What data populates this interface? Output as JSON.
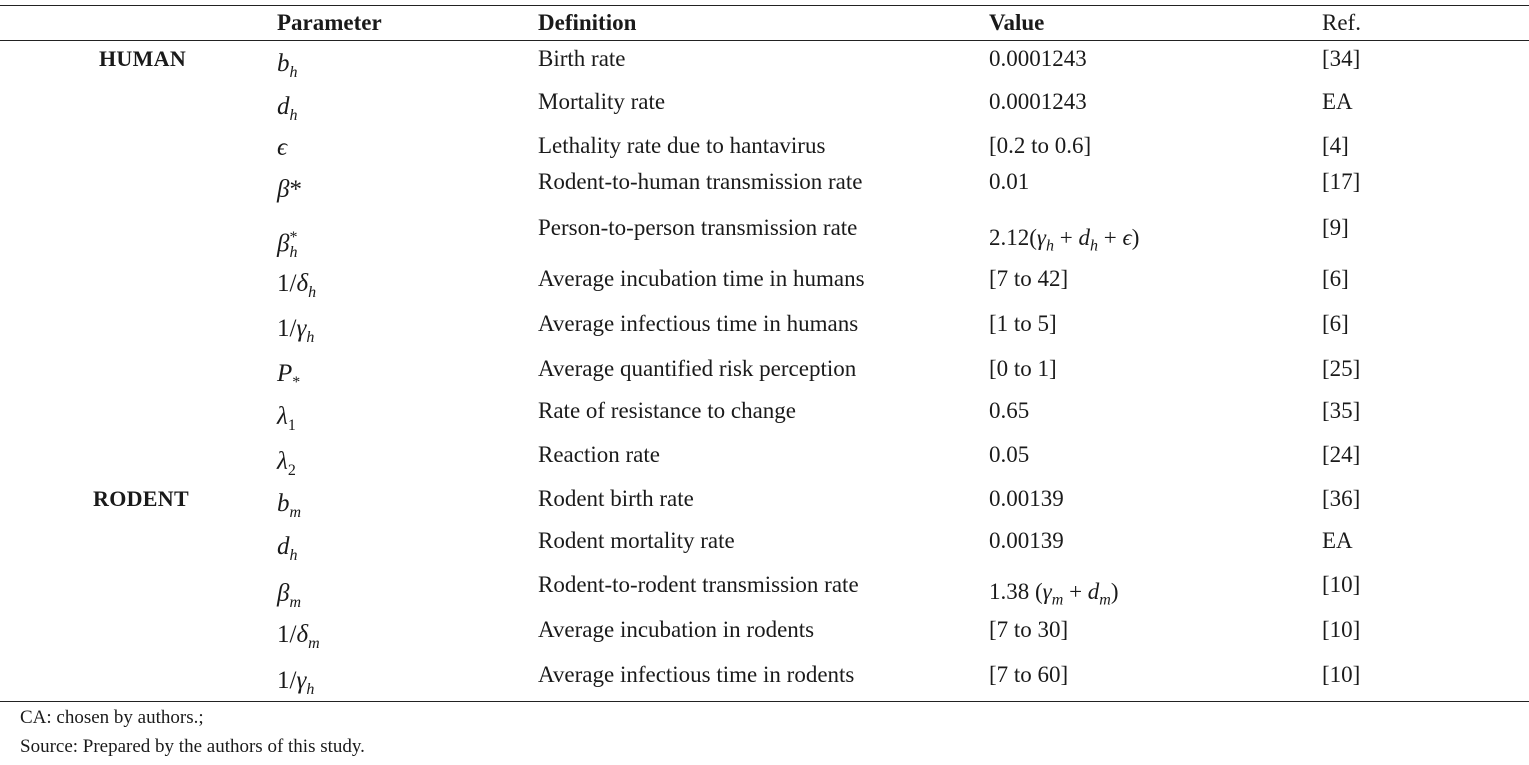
{
  "table": {
    "headers": {
      "parameter": "Parameter",
      "definition": "Definition",
      "value": "Value",
      "ref": "Ref."
    },
    "groups": {
      "human": "HUMAN",
      "rodent": "RODENT"
    },
    "rows": [
      {
        "definition": "Birth rate",
        "value": "0.0001243",
        "ref": "[34]"
      },
      {
        "definition": "Mortality rate",
        "value": "0.0001243",
        "ref": "EA"
      },
      {
        "definition": "Lethality rate due to hantavirus",
        "value": "[0.2 to 0.6]",
        "ref": "[4]"
      },
      {
        "definition": "Rodent-to-human transmission rate",
        "value": "0.01",
        "ref": "[17]"
      },
      {
        "definition": "Person-to-person transmission rate",
        "value": "",
        "ref": "[9]"
      },
      {
        "definition": "Average incubation time in humans",
        "value": "[7 to 42]",
        "ref": "[6]"
      },
      {
        "definition": "Average infectious time in humans",
        "value": "[1 to 5]",
        "ref": "[6]"
      },
      {
        "definition": "Average quantified risk perception",
        "value": "[0 to 1]",
        "ref": "[25]"
      },
      {
        "definition": "Rate of resistance to change",
        "value": "0.65",
        "ref": "[35]"
      },
      {
        "definition": "Reaction rate",
        "value": "0.05",
        "ref": "[24]"
      },
      {
        "definition": "Rodent birth rate",
        "value": "0.00139",
        "ref": "[36]"
      },
      {
        "definition": "Rodent mortality rate",
        "value": "0.00139",
        "ref": "EA"
      },
      {
        "definition": "Rodent-to-rodent transmission rate",
        "value": "",
        "ref": "[10]"
      },
      {
        "definition": "Average incubation in rodents",
        "value": "[7 to 30]",
        "ref": "[10]"
      },
      {
        "definition": "Average infectious time in rodents",
        "value": "[7 to 60]",
        "ref": "[10]"
      }
    ]
  },
  "footnotes": {
    "abbrev": "CA: chosen by authors.;",
    "source": "Source: Prepared by the authors of this study."
  }
}
